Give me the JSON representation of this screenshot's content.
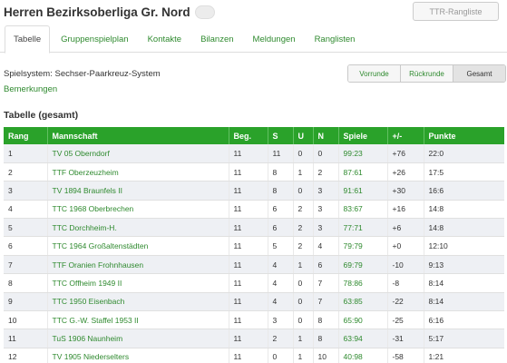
{
  "header": {
    "title": "Herren Bezirksoberliga Gr. Nord",
    "ttr_button": "TTR-Rangliste"
  },
  "tabs": [
    {
      "label": "Tabelle",
      "active": true
    },
    {
      "label": "Gruppenspielplan"
    },
    {
      "label": "Kontakte"
    },
    {
      "label": "Bilanzen"
    },
    {
      "label": "Meldungen"
    },
    {
      "label": "Ranglisten"
    }
  ],
  "info": {
    "spielsystem": "Spielsystem: Sechser-Paarkreuz-System",
    "bemerkungen": "Bemerkungen"
  },
  "round_filter": {
    "options": [
      "Vorrunde",
      "Rückrunde",
      "Gesamt"
    ],
    "selected": "Gesamt"
  },
  "table": {
    "title": "Tabelle (gesamt)",
    "columns": [
      "Rang",
      "Mannschaft",
      "Beg.",
      "S",
      "U",
      "N",
      "Spiele",
      "+/-",
      "Punkte"
    ],
    "rows": [
      {
        "rang": "1",
        "team": "TV 05 Oberndorf",
        "beg": "11",
        "s": "11",
        "u": "0",
        "n": "0",
        "spiele": "99:23",
        "diff": "+76",
        "punkte": "22:0"
      },
      {
        "rang": "2",
        "team": "TTF Oberzeuzheim",
        "beg": "11",
        "s": "8",
        "u": "1",
        "n": "2",
        "spiele": "87:61",
        "diff": "+26",
        "punkte": "17:5"
      },
      {
        "rang": "3",
        "team": "TV 1894 Braunfels II",
        "beg": "11",
        "s": "8",
        "u": "0",
        "n": "3",
        "spiele": "91:61",
        "diff": "+30",
        "punkte": "16:6"
      },
      {
        "rang": "4",
        "team": "TTC 1968 Oberbrechen",
        "beg": "11",
        "s": "6",
        "u": "2",
        "n": "3",
        "spiele": "83:67",
        "diff": "+16",
        "punkte": "14:8"
      },
      {
        "rang": "5",
        "team": "TTC Dorchheim-H.",
        "beg": "11",
        "s": "6",
        "u": "2",
        "n": "3",
        "spiele": "77:71",
        "diff": "+6",
        "punkte": "14:8"
      },
      {
        "rang": "6",
        "team": "TTC 1964 Großaltenstädten",
        "beg": "11",
        "s": "5",
        "u": "2",
        "n": "4",
        "spiele": "79:79",
        "diff": "+0",
        "punkte": "12:10"
      },
      {
        "rang": "7",
        "team": "TTF Oranien Frohnhausen",
        "beg": "11",
        "s": "4",
        "u": "1",
        "n": "6",
        "spiele": "69:79",
        "diff": "-10",
        "punkte": "9:13"
      },
      {
        "rang": "8",
        "team": "TTC Offheim 1949 II",
        "beg": "11",
        "s": "4",
        "u": "0",
        "n": "7",
        "spiele": "78:86",
        "diff": "-8",
        "punkte": "8:14"
      },
      {
        "rang": "9",
        "team": "TTC 1950 Eisenbach",
        "beg": "11",
        "s": "4",
        "u": "0",
        "n": "7",
        "spiele": "63:85",
        "diff": "-22",
        "punkte": "8:14"
      },
      {
        "rang": "10",
        "team": "TTC G.-W. Staffel 1953 II",
        "beg": "11",
        "s": "3",
        "u": "0",
        "n": "8",
        "spiele": "65:90",
        "diff": "-25",
        "punkte": "6:16"
      },
      {
        "rang": "11",
        "team": "TuS 1906 Naunheim",
        "beg": "11",
        "s": "2",
        "u": "1",
        "n": "8",
        "spiele": "63:94",
        "diff": "-31",
        "punkte": "5:17"
      },
      {
        "rang": "12",
        "team": "TV 1905 Niederselters",
        "beg": "11",
        "s": "0",
        "u": "1",
        "n": "10",
        "spiele": "40:98",
        "diff": "-58",
        "punkte": "1:21"
      }
    ]
  },
  "colors": {
    "accent_green": "#2aa22a",
    "link_green": "#2f8a2f"
  }
}
